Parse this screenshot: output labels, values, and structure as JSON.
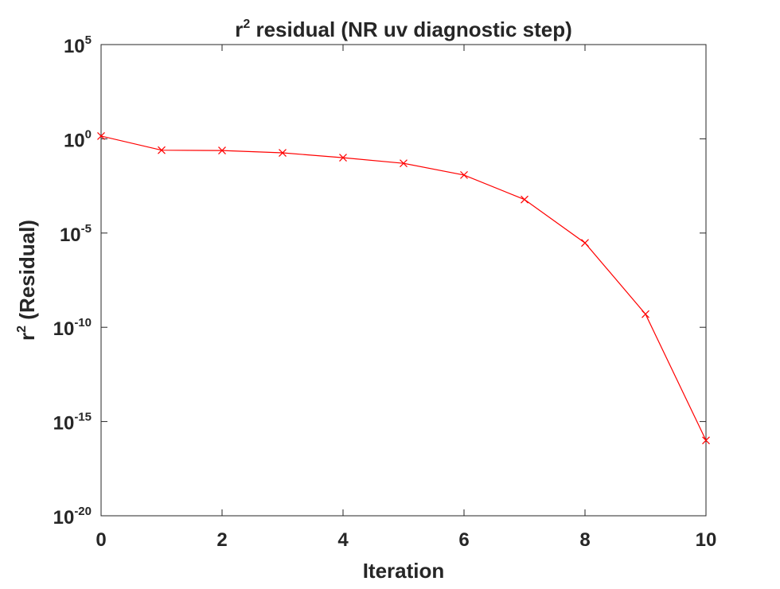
{
  "chart_data": {
    "type": "line",
    "title": {
      "base": "r",
      "sup": "2",
      "rest": " residual (NR uv diagnostic step)"
    },
    "xlabel": "Iteration",
    "ylabel": {
      "base": "r",
      "sup": "2",
      "rest": " (Residual)"
    },
    "xlim": [
      0,
      10
    ],
    "ylim": [
      1e-20,
      100000.0
    ],
    "yscale": "log",
    "grid": false,
    "legend": "none",
    "x_ticks": [
      {
        "value": 0,
        "label": "0"
      },
      {
        "value": 2,
        "label": "2"
      },
      {
        "value": 4,
        "label": "4"
      },
      {
        "value": 6,
        "label": "6"
      },
      {
        "value": 8,
        "label": "8"
      },
      {
        "value": 10,
        "label": "10"
      }
    ],
    "y_ticks": [
      {
        "exponent": 5,
        "base": "10",
        "sup": "5"
      },
      {
        "exponent": 0,
        "base": "10",
        "sup": "0"
      },
      {
        "exponent": -5,
        "base": "10",
        "sup": "-5"
      },
      {
        "exponent": -10,
        "base": "10",
        "sup": "-10"
      },
      {
        "exponent": -15,
        "base": "10",
        "sup": "-15"
      },
      {
        "exponent": -20,
        "base": "10",
        "sup": "-20"
      }
    ],
    "series": [
      {
        "marker": "x",
        "color": "#ff0000",
        "x": [
          0,
          1,
          2,
          3,
          4,
          5,
          6,
          7,
          8,
          9,
          10
        ],
        "y": [
          1.4,
          0.25,
          0.24,
          0.18,
          0.1,
          0.05,
          0.012,
          0.0006,
          3e-06,
          5e-10,
          1e-16
        ]
      }
    ]
  }
}
